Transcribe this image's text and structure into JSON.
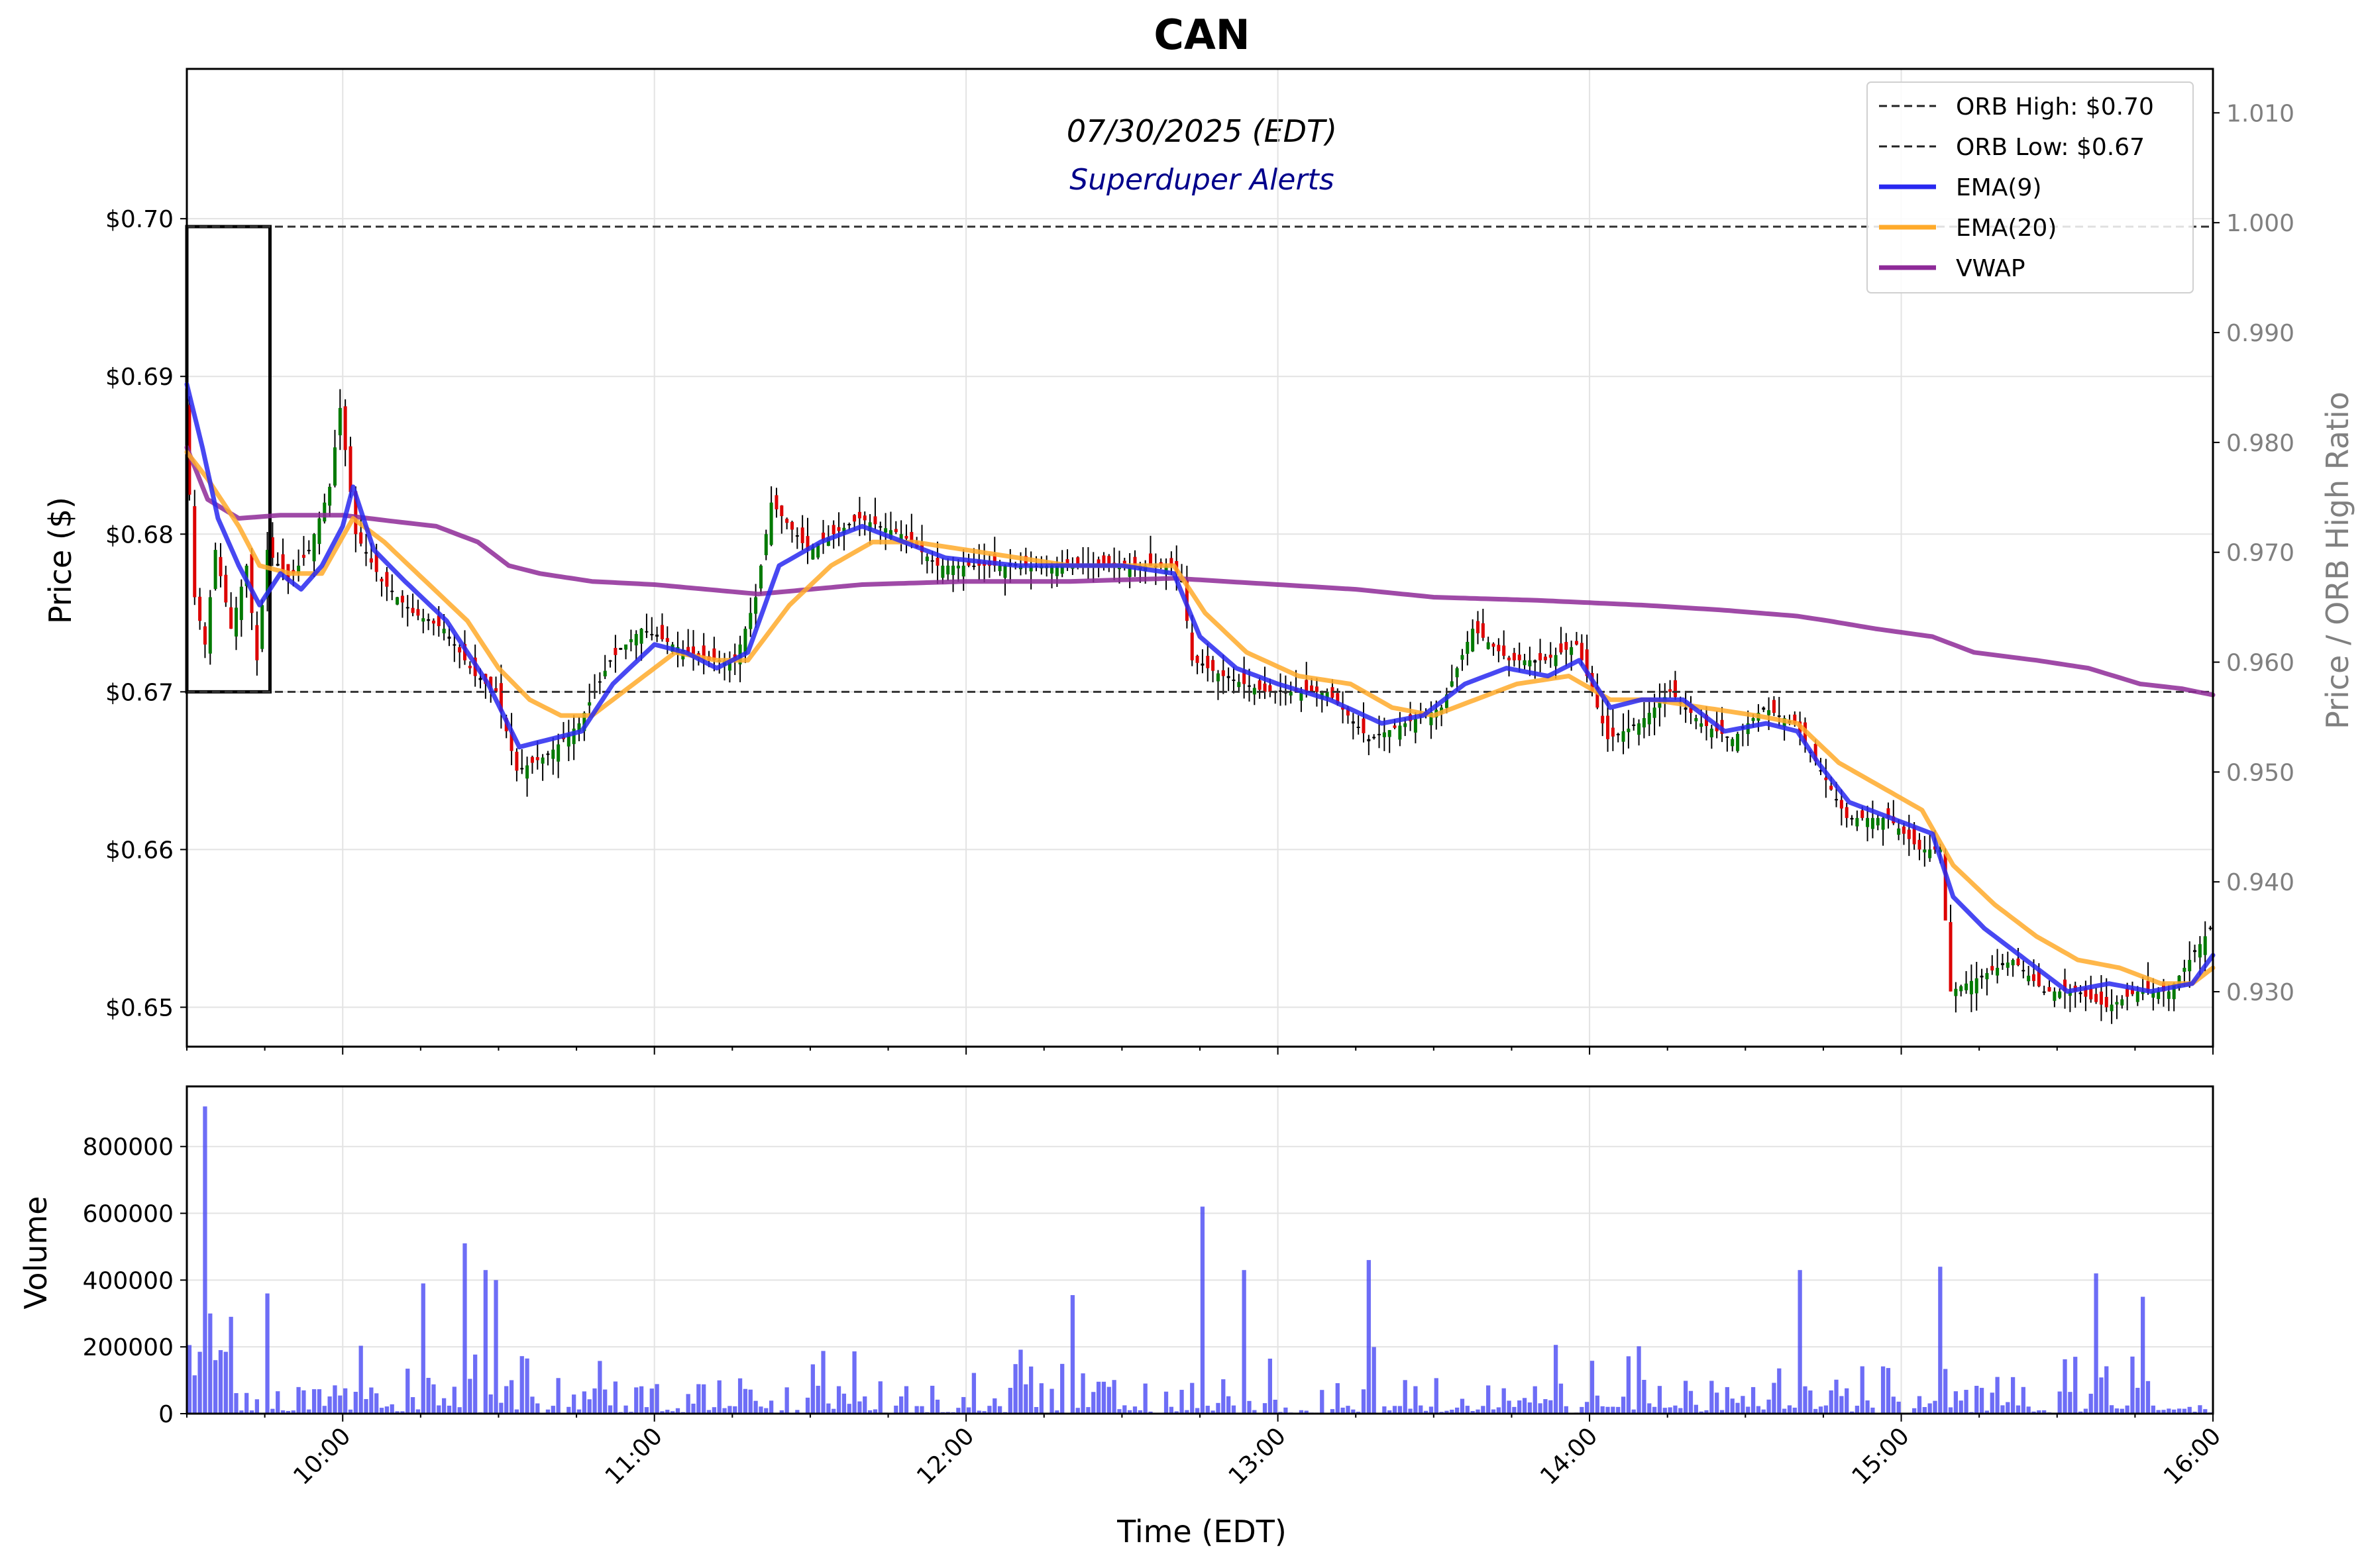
{
  "chart_data": {
    "type": "candlestick",
    "title": "CAN",
    "subtitle": "07/30/2025 (EDT)",
    "annotation": "Superduper Alerts",
    "xlabel": "Time (EDT)",
    "ylabel": "Price ($)",
    "ylabel_right": "Price / ORB High Ratio",
    "volume_label": "Volume",
    "x_range": [
      "09:30",
      "16:00"
    ],
    "x_ticks": [
      "10:00",
      "11:00",
      "12:00",
      "13:00",
      "14:00",
      "15:00",
      "16:00"
    ],
    "ylim": [
      0.6475,
      0.7095
    ],
    "y_ticks": [
      "$0.65",
      "$0.66",
      "$0.67",
      "$0.68",
      "$0.69",
      "$0.70"
    ],
    "ylim_right": [
      0.925,
      1.014
    ],
    "y_ticks_right": [
      "0.930",
      "0.940",
      "0.950",
      "0.960",
      "0.970",
      "0.980",
      "0.990",
      "1.000",
      "1.010"
    ],
    "volume_ylim": [
      0,
      980000
    ],
    "volume_ticks": [
      "0",
      "200000",
      "400000",
      "600000",
      "800000"
    ],
    "grid": true,
    "legend_position": "top-right",
    "legend": [
      "ORB High: $0.70",
      "ORB Low: $0.67",
      "EMA(9)",
      "EMA(20)",
      "VWAP"
    ],
    "orb": {
      "high": 0.6995,
      "low": 0.67,
      "start": "09:30",
      "end": "09:46"
    },
    "colors": {
      "up": "#007a00",
      "down": "#dd0000",
      "flat": "#000000",
      "ema9": "#2828f0",
      "ema20": "#ffaa2a",
      "vwap": "#8e2a98",
      "volume": "#4848f4",
      "orb_line": "#333333"
    },
    "price_path": [
      [
        "09:30",
        0.689
      ],
      [
        "09:32",
        0.676
      ],
      [
        "09:34",
        0.673
      ],
      [
        "09:36",
        0.679
      ],
      [
        "09:39",
        0.674
      ],
      [
        "09:42",
        0.678
      ],
      [
        "09:44",
        0.672
      ],
      [
        "09:46",
        0.679
      ],
      [
        "09:50",
        0.677
      ],
      [
        "09:54",
        0.679
      ],
      [
        "09:58",
        0.683
      ],
      [
        "10:00",
        0.688
      ],
      [
        "10:03",
        0.68
      ],
      [
        "10:08",
        0.677
      ],
      [
        "10:14",
        0.675
      ],
      [
        "10:20",
        0.674
      ],
      [
        "10:26",
        0.671
      ],
      [
        "10:30",
        0.67
      ],
      [
        "10:34",
        0.665
      ],
      [
        "10:40",
        0.666
      ],
      [
        "10:46",
        0.668
      ],
      [
        "10:52",
        0.672
      ],
      [
        "10:58",
        0.674
      ],
      [
        "11:04",
        0.673
      ],
      [
        "11:10",
        0.672
      ],
      [
        "11:16",
        0.672
      ],
      [
        "11:20",
        0.676
      ],
      [
        "11:23",
        0.682
      ],
      [
        "11:30",
        0.679
      ],
      [
        "11:40",
        0.681
      ],
      [
        "11:48",
        0.68
      ],
      [
        "11:55",
        0.678
      ],
      [
        "12:05",
        0.678
      ],
      [
        "12:20",
        0.678
      ],
      [
        "12:40",
        0.678
      ],
      [
        "12:42",
        0.677
      ],
      [
        "12:44",
        0.672
      ],
      [
        "12:50",
        0.671
      ],
      [
        "12:58",
        0.67
      ],
      [
        "13:10",
        0.67
      ],
      [
        "13:18",
        0.667
      ],
      [
        "13:25",
        0.668
      ],
      [
        "13:32",
        0.669
      ],
      [
        "13:38",
        0.674
      ],
      [
        "13:45",
        0.672
      ],
      [
        "13:52",
        0.672
      ],
      [
        "13:58",
        0.673
      ],
      [
        "14:04",
        0.667
      ],
      [
        "14:10",
        0.668
      ],
      [
        "14:16",
        0.67
      ],
      [
        "14:22",
        0.668
      ],
      [
        "14:28",
        0.667
      ],
      [
        "14:34",
        0.669
      ],
      [
        "14:40",
        0.668
      ],
      [
        "14:45",
        0.665
      ],
      [
        "14:50",
        0.662
      ],
      [
        "14:58",
        0.662
      ],
      [
        "15:04",
        0.66
      ],
      [
        "15:08",
        0.66
      ],
      [
        "15:10",
        0.651
      ],
      [
        "15:16",
        0.652
      ],
      [
        "15:22",
        0.653
      ],
      [
        "15:28",
        0.651
      ],
      [
        "15:34",
        0.651
      ],
      [
        "15:40",
        0.65
      ],
      [
        "15:46",
        0.651
      ],
      [
        "15:52",
        0.651
      ],
      [
        "15:56",
        0.653
      ],
      [
        "16:00",
        0.655
      ]
    ],
    "ema9_path": [
      [
        "09:30",
        0.6895
      ],
      [
        "09:33",
        0.6855
      ],
      [
        "09:36",
        0.681
      ],
      [
        "09:40",
        0.678
      ],
      [
        "09:44",
        0.6755
      ],
      [
        "09:48",
        0.6775
      ],
      [
        "09:52",
        0.6765
      ],
      [
        "09:56",
        0.678
      ],
      [
        "10:00",
        0.6805
      ],
      [
        "10:02",
        0.683
      ],
      [
        "10:06",
        0.679
      ],
      [
        "10:12",
        0.677
      ],
      [
        "10:20",
        0.6745
      ],
      [
        "10:28",
        0.6705
      ],
      [
        "10:34",
        0.6665
      ],
      [
        "10:40",
        0.667
      ],
      [
        "10:46",
        0.6675
      ],
      [
        "10:52",
        0.6705
      ],
      [
        "11:00",
        0.673
      ],
      [
        "11:06",
        0.6725
      ],
      [
        "11:12",
        0.6715
      ],
      [
        "11:18",
        0.6725
      ],
      [
        "11:24",
        0.678
      ],
      [
        "11:32",
        0.6795
      ],
      [
        "11:40",
        0.6805
      ],
      [
        "11:48",
        0.6795
      ],
      [
        "11:56",
        0.6785
      ],
      [
        "12:10",
        0.678
      ],
      [
        "12:30",
        0.678
      ],
      [
        "12:40",
        0.6775
      ],
      [
        "12:45",
        0.6735
      ],
      [
        "12:52",
        0.6715
      ],
      [
        "13:00",
        0.6705
      ],
      [
        "13:10",
        0.6695
      ],
      [
        "13:20",
        0.668
      ],
      [
        "13:28",
        0.6685
      ],
      [
        "13:36",
        0.6705
      ],
      [
        "13:44",
        0.6715
      ],
      [
        "13:52",
        0.671
      ],
      [
        "13:58",
        0.672
      ],
      [
        "14:04",
        0.669
      ],
      [
        "14:10",
        0.6695
      ],
      [
        "14:18",
        0.6695
      ],
      [
        "14:26",
        0.6675
      ],
      [
        "14:34",
        0.668
      ],
      [
        "14:40",
        0.6675
      ],
      [
        "14:44",
        0.6655
      ],
      [
        "14:50",
        0.663
      ],
      [
        "14:58",
        0.662
      ],
      [
        "15:06",
        0.661
      ],
      [
        "15:10",
        0.657
      ],
      [
        "15:16",
        0.655
      ],
      [
        "15:24",
        0.653
      ],
      [
        "15:32",
        0.651
      ],
      [
        "15:40",
        0.6515
      ],
      [
        "15:48",
        0.651
      ],
      [
        "15:56",
        0.6515
      ],
      [
        "16:00",
        0.6533
      ]
    ],
    "ema20_path": [
      [
        "09:30",
        0.6852
      ],
      [
        "09:34",
        0.6835
      ],
      [
        "09:40",
        0.6805
      ],
      [
        "09:44",
        0.678
      ],
      [
        "09:50",
        0.6775
      ],
      [
        "09:56",
        0.6775
      ],
      [
        "10:02",
        0.681
      ],
      [
        "10:08",
        0.6795
      ],
      [
        "10:16",
        0.677
      ],
      [
        "10:24",
        0.6745
      ],
      [
        "10:30",
        0.6715
      ],
      [
        "10:36",
        0.6695
      ],
      [
        "10:42",
        0.6685
      ],
      [
        "10:48",
        0.6685
      ],
      [
        "10:56",
        0.6705
      ],
      [
        "11:04",
        0.6725
      ],
      [
        "11:12",
        0.672
      ],
      [
        "11:18",
        0.672
      ],
      [
        "11:26",
        0.6755
      ],
      [
        "11:34",
        0.678
      ],
      [
        "11:42",
        0.6795
      ],
      [
        "11:50",
        0.6795
      ],
      [
        "12:00",
        0.679
      ],
      [
        "12:20",
        0.678
      ],
      [
        "12:40",
        0.678
      ],
      [
        "12:46",
        0.675
      ],
      [
        "12:54",
        0.6725
      ],
      [
        "13:04",
        0.671
      ],
      [
        "13:14",
        0.6705
      ],
      [
        "13:22",
        0.669
      ],
      [
        "13:30",
        0.6685
      ],
      [
        "13:38",
        0.6695
      ],
      [
        "13:46",
        0.6705
      ],
      [
        "13:56",
        0.671
      ],
      [
        "14:04",
        0.6695
      ],
      [
        "14:12",
        0.6695
      ],
      [
        "14:22",
        0.669
      ],
      [
        "14:32",
        0.6685
      ],
      [
        "14:40",
        0.668
      ],
      [
        "14:48",
        0.6655
      ],
      [
        "14:56",
        0.664
      ],
      [
        "15:04",
        0.6625
      ],
      [
        "15:10",
        0.659
      ],
      [
        "15:18",
        0.6565
      ],
      [
        "15:26",
        0.6545
      ],
      [
        "15:34",
        0.653
      ],
      [
        "15:42",
        0.6525
      ],
      [
        "15:50",
        0.6515
      ],
      [
        "15:56",
        0.6515
      ],
      [
        "16:00",
        0.6525
      ]
    ],
    "vwap_path": [
      [
        "09:30",
        0.6855
      ],
      [
        "09:34",
        0.6822
      ],
      [
        "09:40",
        0.681
      ],
      [
        "09:48",
        0.6812
      ],
      [
        "10:00",
        0.6812
      ],
      [
        "10:10",
        0.6808
      ],
      [
        "10:18",
        0.6805
      ],
      [
        "10:26",
        0.6795
      ],
      [
        "10:32",
        0.678
      ],
      [
        "10:38",
        0.6775
      ],
      [
        "10:48",
        0.677
      ],
      [
        "11:00",
        0.6768
      ],
      [
        "11:20",
        0.6762
      ],
      [
        "11:40",
        0.6768
      ],
      [
        "12:00",
        0.677
      ],
      [
        "12:20",
        0.677
      ],
      [
        "12:40",
        0.6772
      ],
      [
        "12:50",
        0.677
      ],
      [
        "13:00",
        0.6768
      ],
      [
        "13:15",
        0.6765
      ],
      [
        "13:30",
        0.676
      ],
      [
        "13:50",
        0.6758
      ],
      [
        "14:10",
        0.6755
      ],
      [
        "14:25",
        0.6752
      ],
      [
        "14:40",
        0.6748
      ],
      [
        "14:46",
        0.6745
      ],
      [
        "14:55",
        0.674
      ],
      [
        "15:06",
        0.6735
      ],
      [
        "15:14",
        0.6725
      ],
      [
        "15:26",
        0.672
      ],
      [
        "15:36",
        0.6715
      ],
      [
        "15:46",
        0.6705
      ],
      [
        "15:54",
        0.6702
      ],
      [
        "16:00",
        0.6698
      ]
    ],
    "volume_spikes": [
      [
        "09:33",
        920000
      ],
      [
        "09:34",
        300000
      ],
      [
        "09:38",
        290000
      ],
      [
        "09:45",
        360000
      ],
      [
        "10:15",
        390000
      ],
      [
        "10:23",
        510000
      ],
      [
        "10:27",
        430000
      ],
      [
        "10:29",
        400000
      ],
      [
        "12:20",
        355000
      ],
      [
        "12:45",
        620000
      ],
      [
        "12:53",
        430000
      ],
      [
        "13:17",
        460000
      ],
      [
        "14:40",
        430000
      ],
      [
        "15:07",
        440000
      ],
      [
        "15:37",
        420000
      ],
      [
        "15:46",
        350000
      ]
    ]
  }
}
